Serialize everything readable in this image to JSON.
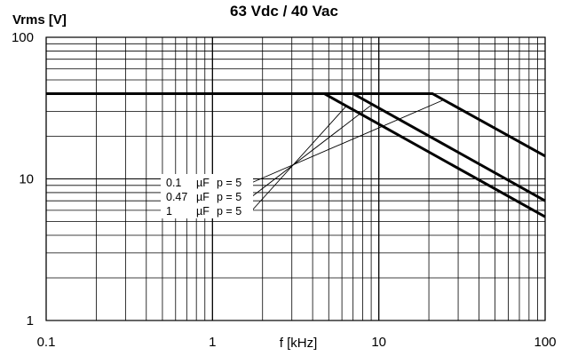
{
  "chart_data": {
    "type": "line",
    "title": "63 Vdc / 40 Vac",
    "xlabel": "f [kHz]",
    "ylabel": "Vrms [V]",
    "xscale": "log",
    "yscale": "log",
    "xlim": [
      0.1,
      100
    ],
    "ylim": [
      1,
      100
    ],
    "grid": true,
    "xticks": [
      "0.1",
      "1",
      "10",
      "100"
    ],
    "yticks": [
      "1",
      "10",
      "100"
    ],
    "series": [
      {
        "name": "0.1 µF p = 5",
        "label_parts": [
          "0.1",
          "µF",
          "p = 5"
        ],
        "points": [
          {
            "x": 0.1,
            "y": 40
          },
          {
            "x": 21,
            "y": 40
          },
          {
            "x": 100,
            "y": 14.5
          }
        ]
      },
      {
        "name": "0.47 µF p = 5",
        "label_parts": [
          "0.47",
          "µF",
          "p = 5"
        ],
        "points": [
          {
            "x": 0.1,
            "y": 40
          },
          {
            "x": 7,
            "y": 40
          },
          {
            "x": 100,
            "y": 7
          }
        ]
      },
      {
        "name": "1 µF p = 5",
        "label_parts": [
          "1",
          "µF",
          "p = 5"
        ],
        "points": [
          {
            "x": 0.1,
            "y": 40
          },
          {
            "x": 4.7,
            "y": 40
          },
          {
            "x": 100,
            "y": 5.4
          }
        ]
      }
    ]
  }
}
